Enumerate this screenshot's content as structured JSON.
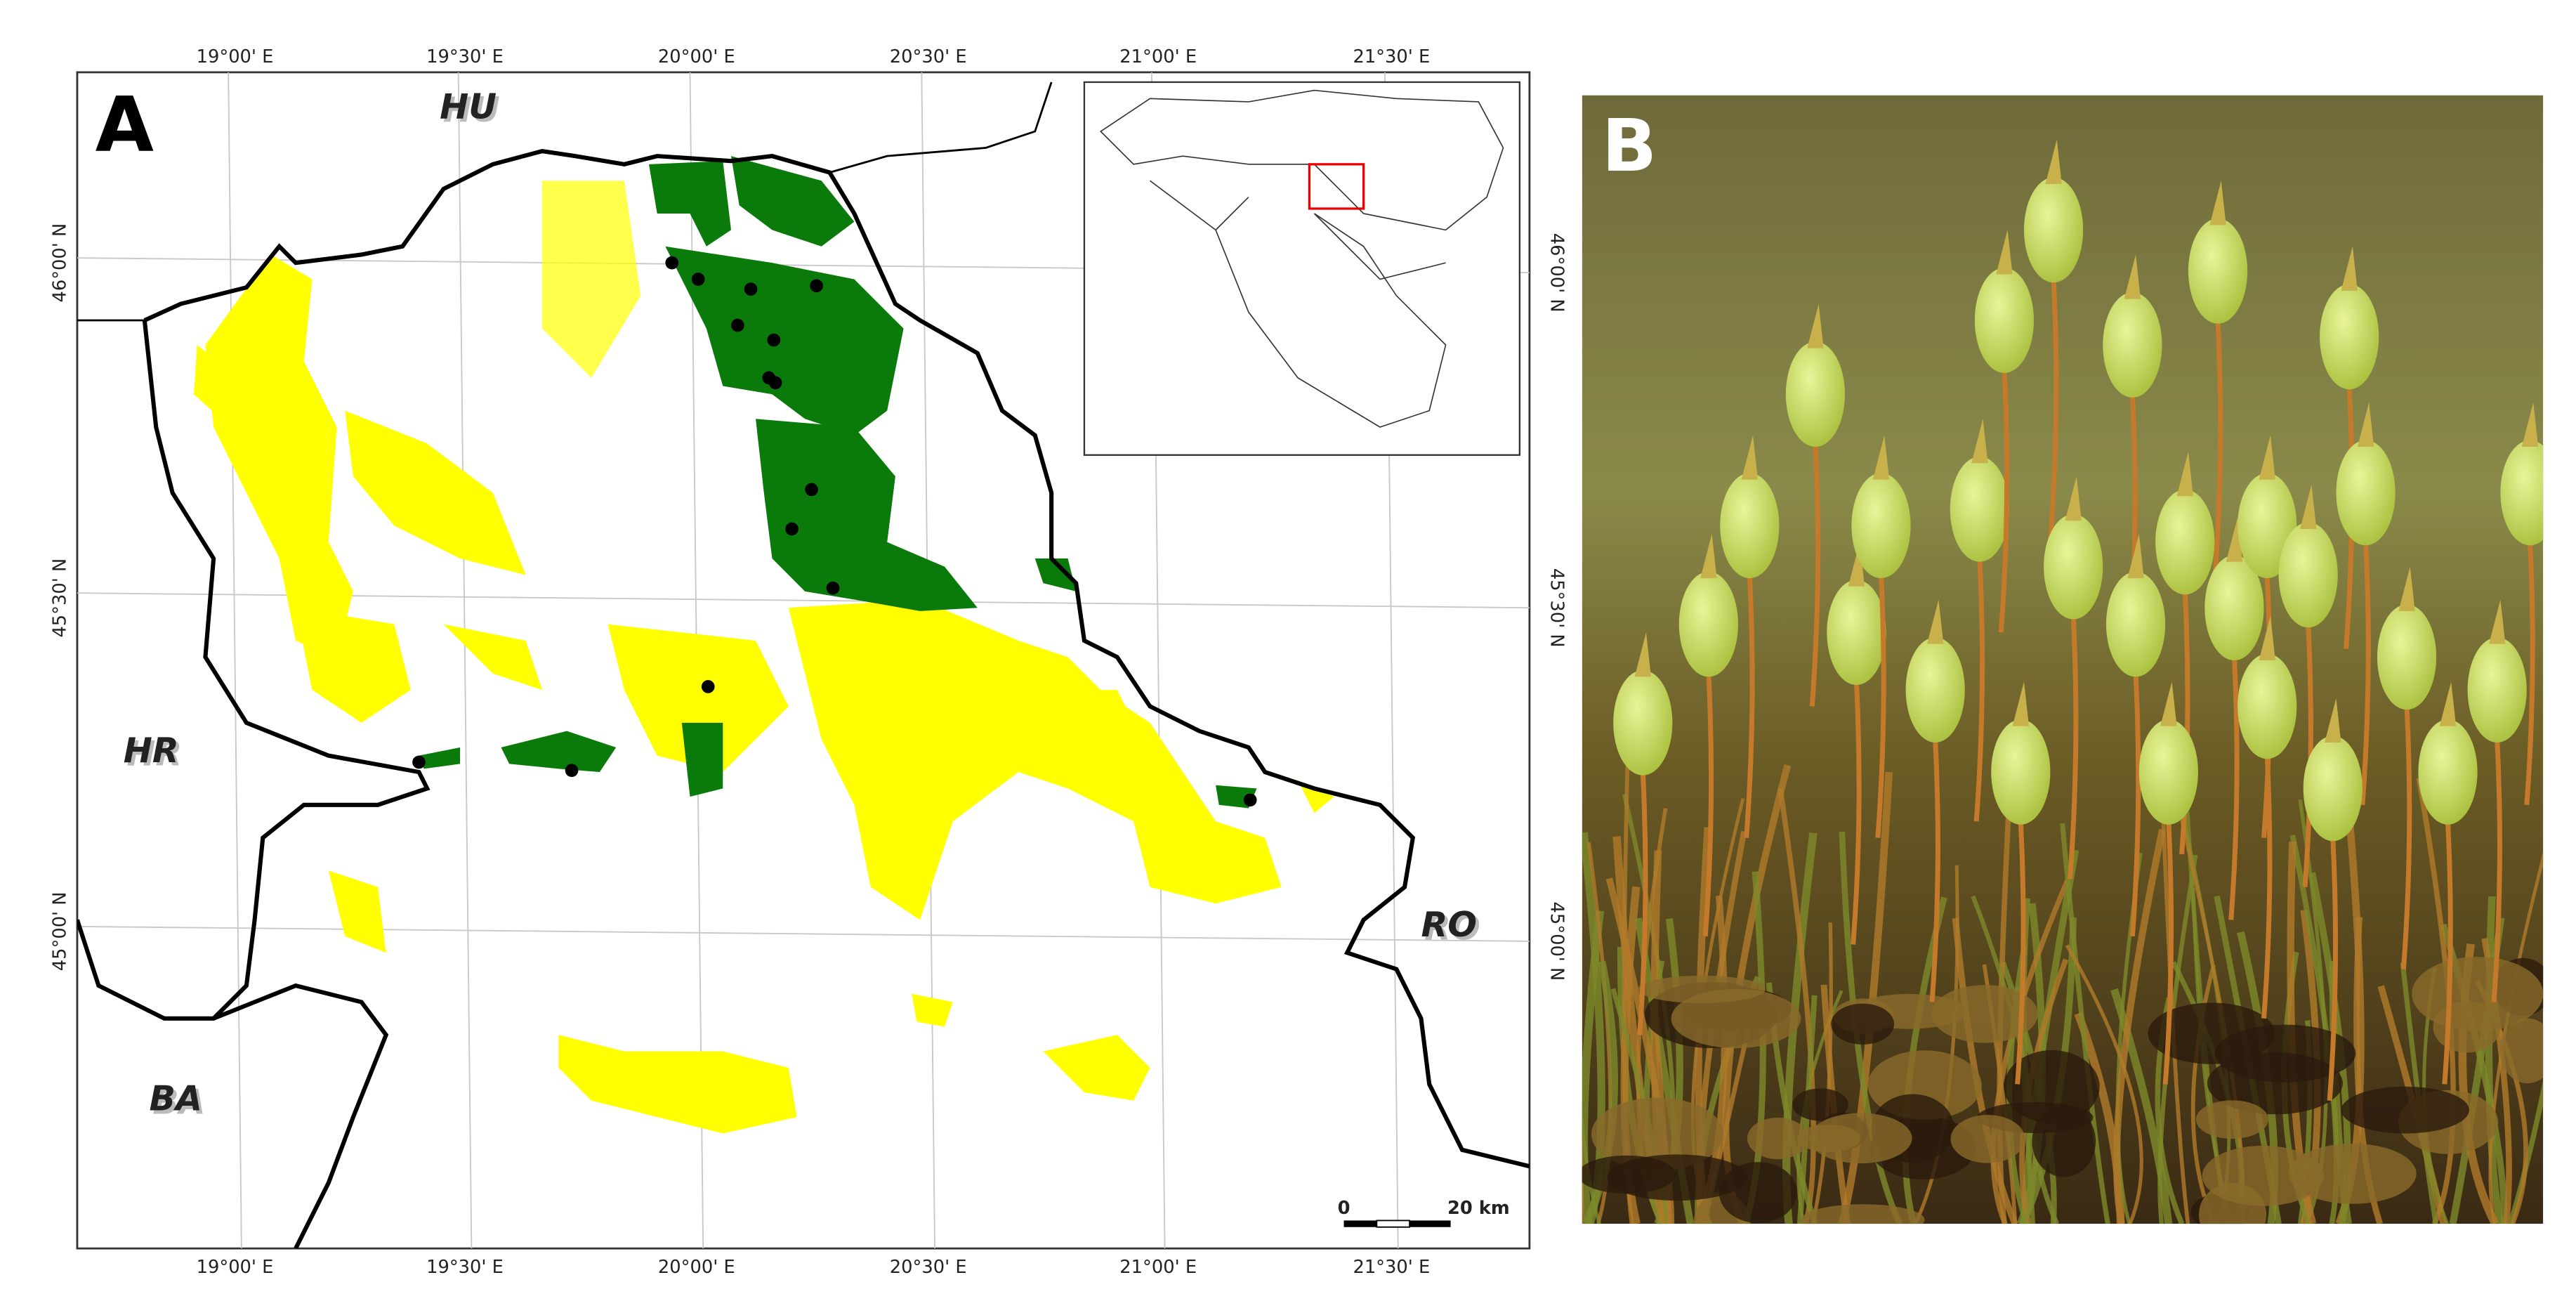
{
  "panels": [
    {
      "label": "A",
      "countries": [
        "HU",
        "HR",
        "RO",
        "BA"
      ],
      "longitude_labels": [
        "19°00' E",
        "19°30' E",
        "20°00' E",
        "20°30' E",
        "21°00' E",
        "21°30' E"
      ],
      "latitude_labels": [
        "46°00' N",
        "45°30' N",
        "45°00' N"
      ],
      "scale_bar": [
        "0",
        "20 km"
      ]
    },
    {
      "label": "B"
    }
  ]
}
